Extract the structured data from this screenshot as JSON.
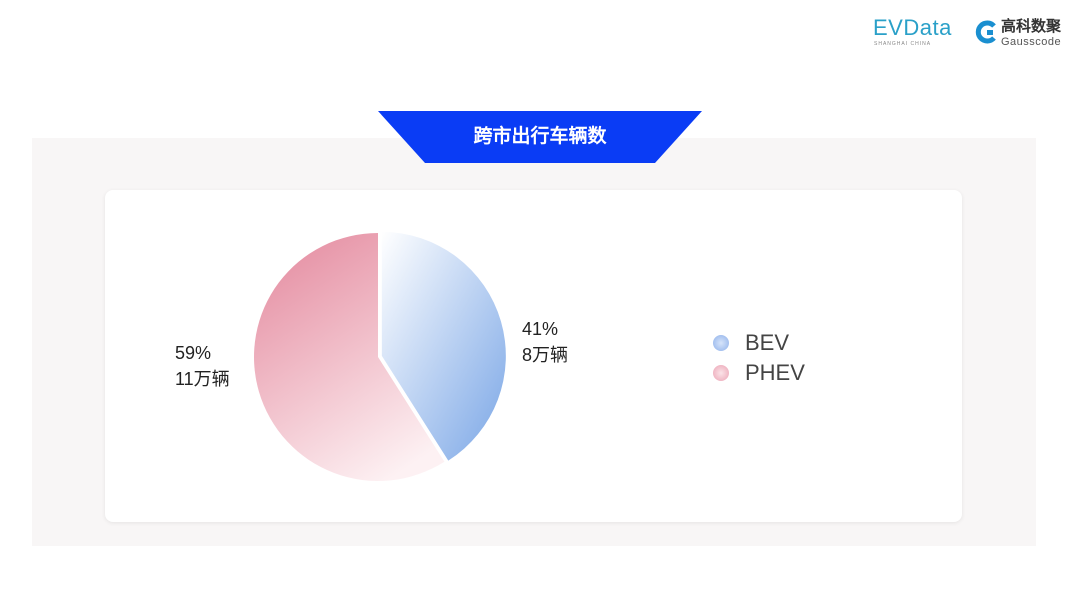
{
  "logos": {
    "evdata": "EVData",
    "evdata_sub": "SHANGHAI CHINA",
    "gauss_cn": "高科数聚",
    "gauss_en": "Gausscode"
  },
  "chart_data": {
    "type": "pie",
    "title": "跨市出行车辆数",
    "categories": [
      "BEV",
      "PHEV"
    ],
    "values": [
      41,
      59
    ],
    "data_labels": [
      {
        "percent": "41%",
        "count": "8万辆"
      },
      {
        "percent": "59%",
        "count": "11万辆"
      }
    ],
    "legend": {
      "placement": "right",
      "entries": [
        "BEV",
        "PHEV"
      ]
    },
    "colors": {
      "BEV": [
        "#ffffff",
        "#7aa6e6"
      ],
      "PHEV": [
        "#e58ea2",
        "#fdf1f3"
      ]
    },
    "title_banner_color": "#0a3cf5"
  }
}
